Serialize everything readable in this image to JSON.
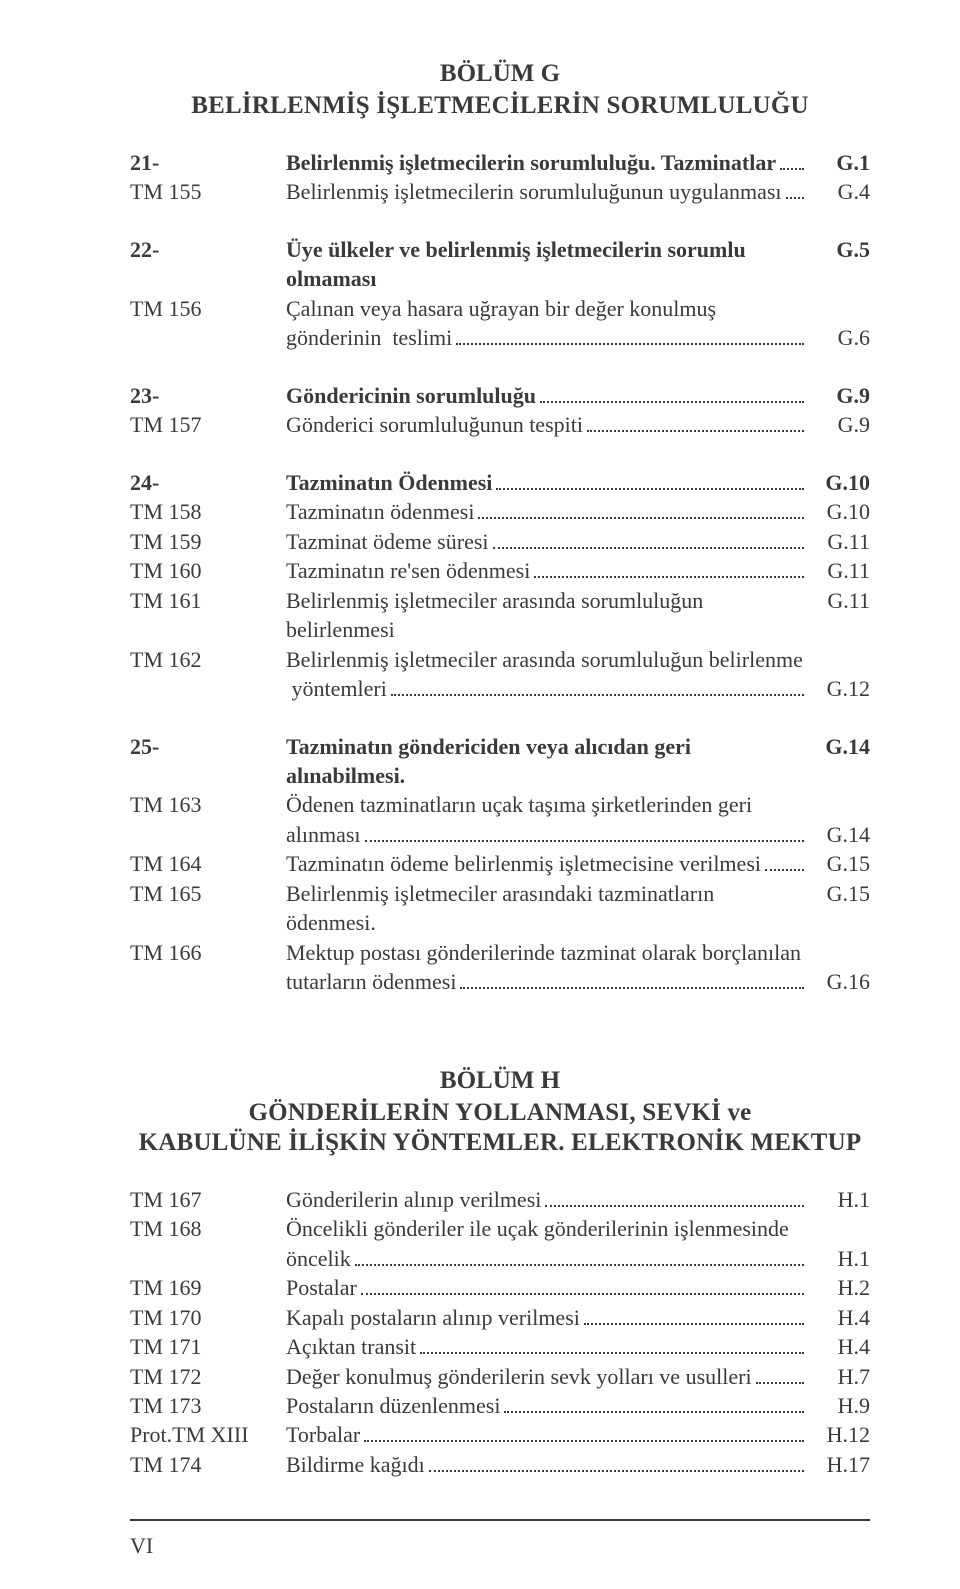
{
  "page_number": "VI",
  "sectionG": {
    "title": "BÖLÜM G",
    "subtitle": "BELİRLENMİŞ İŞLETMECİLERİN SORUMLULUĞU",
    "groups": [
      {
        "rows": [
          {
            "code": "21-",
            "lines": [
              "Belirlenmiş işletmecilerin sorumluluğu. Tazminatlar"
            ],
            "page": "G.1",
            "bold": true
          },
          {
            "code": "TM 155",
            "lines": [
              "Belirlenmiş işletmecilerin sorumluluğunun uygulanması"
            ],
            "page": "G.4"
          }
        ]
      },
      {
        "rows": [
          {
            "code": "22-",
            "lines": [
              "Üye ülkeler ve belirlenmiş işletmecilerin sorumlu olmaması"
            ],
            "page": "G.5",
            "bold": true,
            "noDots": true
          },
          {
            "code": "TM 156",
            "lines": [
              "Çalınan veya hasara uğrayan bir değer konulmuş",
              "gönderinin  teslimi"
            ],
            "page": "G.6"
          }
        ]
      },
      {
        "rows": [
          {
            "code": "23-",
            "lines": [
              "Göndericinin sorumluluğu"
            ],
            "page": "G.9",
            "bold": true
          },
          {
            "code": "TM 157",
            "lines": [
              "Gönderici sorumluluğunun tespiti"
            ],
            "page": "G.9"
          }
        ]
      },
      {
        "rows": [
          {
            "code": "24-",
            "lines": [
              "Tazminatın Ödenmesi"
            ],
            "page": "G.10",
            "bold": true
          },
          {
            "code": "TM 158",
            "lines": [
              "Tazminatın ödenmesi"
            ],
            "page": "G.10"
          },
          {
            "code": "TM 159",
            "lines": [
              "Tazminat ödeme süresi"
            ],
            "page": "G.11"
          },
          {
            "code": "TM 160",
            "lines": [
              "Tazminatın re'sen ödenmesi"
            ],
            "page": "G.11"
          },
          {
            "code": "TM 161",
            "lines": [
              "Belirlenmiş işletmeciler arasında sorumluluğun belirlenmesi"
            ],
            "page": "G.11",
            "noDots": true
          },
          {
            "code": "TM 162",
            "lines": [
              "Belirlenmiş işletmeciler arasında sorumluluğun belirlenme",
              " yöntemleri"
            ],
            "page": "G.12"
          }
        ]
      },
      {
        "rows": [
          {
            "code": "25-",
            "lines": [
              "Tazminatın göndericiden veya alıcıdan geri alınabilmesi."
            ],
            "page": "G.14",
            "bold": true,
            "noDots": true
          },
          {
            "code": "TM 163",
            "lines": [
              "Ödenen tazminatların uçak taşıma şirketlerinden geri",
              "alınması"
            ],
            "page": "G.14"
          },
          {
            "code": "TM 164",
            "lines": [
              "Tazminatın ödeme belirlenmiş işletmecisine verilmesi"
            ],
            "page": "G.15"
          },
          {
            "code": "TM 165",
            "lines": [
              "Belirlenmiş işletmeciler arasındaki tazminatların ödenmesi."
            ],
            "page": "G.15",
            "noDots": true
          },
          {
            "code": "TM 166",
            "lines": [
              "Mektup postası gönderilerinde tazminat olarak borçlanılan",
              "tutarların ödenmesi"
            ],
            "page": "G.16"
          }
        ]
      }
    ]
  },
  "sectionH": {
    "title": "BÖLÜM H",
    "subtitle1": "GÖNDERİLERİN YOLLANMASI, SEVKİ ve",
    "subtitle2": "KABULÜNE İLİŞKİN YÖNTEMLER. ELEKTRONİK MEKTUP",
    "rows": [
      {
        "code": "TM 167",
        "lines": [
          "Gönderilerin alınıp verilmesi"
        ],
        "page": "H.1"
      },
      {
        "code": "TM 168",
        "lines": [
          "Öncelikli gönderiler ile uçak gönderilerinin işlenmesinde",
          "öncelik"
        ],
        "page": "H.1"
      },
      {
        "code": "TM 169",
        "lines": [
          "Postalar"
        ],
        "page": "H.2"
      },
      {
        "code": "TM 170",
        "lines": [
          "Kapalı postaların alınıp verilmesi"
        ],
        "page": "H.4"
      },
      {
        "code": "TM 171",
        "lines": [
          "Açıktan transit"
        ],
        "page": "H.4"
      },
      {
        "code": "TM 172",
        "lines": [
          "Değer konulmuş gönderilerin sevk yolları ve usulleri"
        ],
        "page": "H.7"
      },
      {
        "code": "TM 173",
        "lines": [
          "Postaların düzenlenmesi"
        ],
        "page": "H.9"
      },
      {
        "code": "Prot.TM XIII",
        "lines": [
          "Torbalar"
        ],
        "page": "H.12"
      },
      {
        "code": "TM 174",
        "lines": [
          "Bildirme kağıdı"
        ],
        "page": "H.17"
      }
    ]
  }
}
